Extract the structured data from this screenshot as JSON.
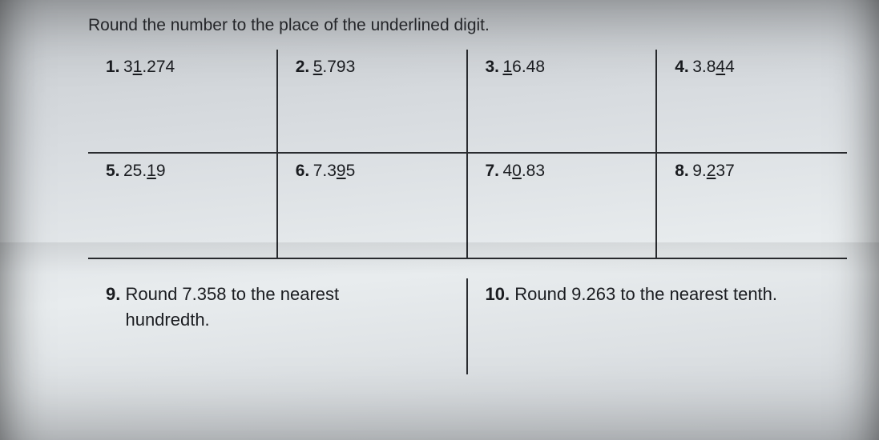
{
  "instruction": "Round the number to the place of the underlined digit.",
  "grid": [
    {
      "num": "1.",
      "pre": "3",
      "u": "1",
      "post": ".274"
    },
    {
      "num": "2.",
      "pre": "",
      "u": "5",
      "post": ".793"
    },
    {
      "num": "3.",
      "pre": "",
      "u": "1",
      "post": "6.48"
    },
    {
      "num": "4.",
      "pre": "3.8",
      "u": "4",
      "post": "4"
    },
    {
      "num": "5.",
      "pre": "25.",
      "u": "1",
      "post": "9"
    },
    {
      "num": "6.",
      "pre": "7.3",
      "u": "9",
      "post": "5"
    },
    {
      "num": "7.",
      "pre": "4",
      "u": "0",
      "post": ".83"
    },
    {
      "num": "8.",
      "pre": "9.",
      "u": "2",
      "post": "37"
    }
  ],
  "bottom": [
    {
      "num": "9.",
      "text_a": "Round 7.358 to the nearest",
      "text_b": "hundredth."
    },
    {
      "num": "10.",
      "text_a": "Round 9.263 to the nearest tenth.",
      "text_b": ""
    }
  ]
}
